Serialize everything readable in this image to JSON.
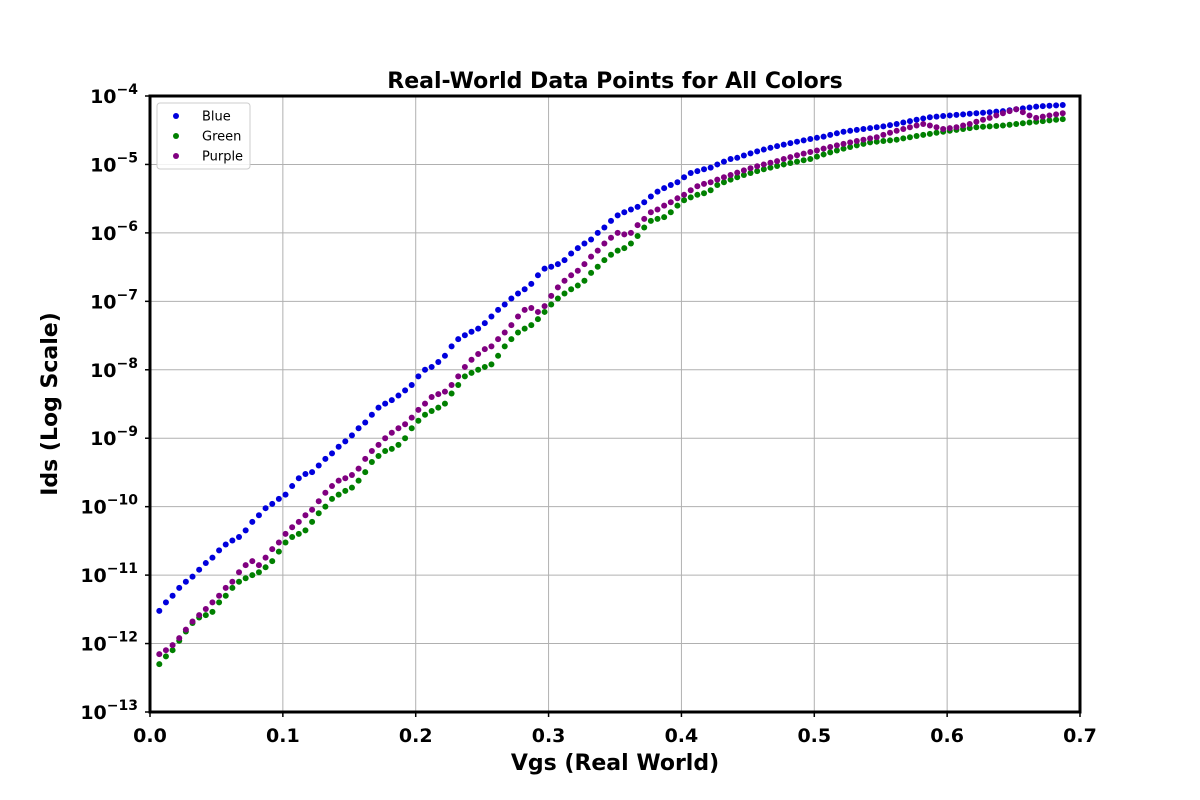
{
  "chart_data": {
    "type": "scatter",
    "title": "Real-World Data Points for All Colors",
    "xlabel": "Vgs (Real World)",
    "ylabel": "Ids (Log Scale)",
    "xlim": [
      0.0,
      0.7
    ],
    "ylim": [
      1e-13,
      0.0001
    ],
    "yscale": "log",
    "grid": true,
    "legend_position": "top-left",
    "x_ticks": [
      {
        "value": 0.0,
        "label": "0.0"
      },
      {
        "value": 0.1,
        "label": "0.1"
      },
      {
        "value": 0.2,
        "label": "0.2"
      },
      {
        "value": 0.3,
        "label": "0.3"
      },
      {
        "value": 0.4,
        "label": "0.4"
      },
      {
        "value": 0.5,
        "label": "0.5"
      },
      {
        "value": 0.6,
        "label": "0.6"
      },
      {
        "value": 0.7,
        "label": "0.7"
      }
    ],
    "y_ticks": [
      {
        "exp": -13,
        "base": "10",
        "sup": "−13"
      },
      {
        "exp": -12,
        "base": "10",
        "sup": "−12"
      },
      {
        "exp": -11,
        "base": "10",
        "sup": "−11"
      },
      {
        "exp": -10,
        "base": "10",
        "sup": "−10"
      },
      {
        "exp": -9,
        "base": "10",
        "sup": "−9"
      },
      {
        "exp": -8,
        "base": "10",
        "sup": "−8"
      },
      {
        "exp": -7,
        "base": "10",
        "sup": "−7"
      },
      {
        "exp": -6,
        "base": "10",
        "sup": "−6"
      },
      {
        "exp": -5,
        "base": "10",
        "sup": "−5"
      },
      {
        "exp": -4,
        "base": "10",
        "sup": "−4"
      }
    ],
    "series": [
      {
        "name": "Blue",
        "color": "#0000dd",
        "x": [
          0.007,
          0.012,
          0.017,
          0.022,
          0.027,
          0.032,
          0.037,
          0.042,
          0.047,
          0.052,
          0.057,
          0.062,
          0.067,
          0.072,
          0.077,
          0.082,
          0.087,
          0.092,
          0.097,
          0.102,
          0.107,
          0.112,
          0.117,
          0.122,
          0.127,
          0.132,
          0.137,
          0.142,
          0.147,
          0.152,
          0.157,
          0.162,
          0.167,
          0.172,
          0.177,
          0.182,
          0.187,
          0.192,
          0.197,
          0.202,
          0.207,
          0.212,
          0.217,
          0.222,
          0.227,
          0.232,
          0.237,
          0.242,
          0.247,
          0.252,
          0.257,
          0.262,
          0.267,
          0.272,
          0.277,
          0.282,
          0.287,
          0.292,
          0.297,
          0.302,
          0.307,
          0.312,
          0.317,
          0.322,
          0.327,
          0.332,
          0.337,
          0.342,
          0.347,
          0.352,
          0.357,
          0.362,
          0.367,
          0.372,
          0.377,
          0.382,
          0.387,
          0.392,
          0.397,
          0.402,
          0.407,
          0.412,
          0.417,
          0.422,
          0.427,
          0.432,
          0.437,
          0.442,
          0.447,
          0.452,
          0.457,
          0.462,
          0.467,
          0.472,
          0.477,
          0.482,
          0.487,
          0.492,
          0.497,
          0.502,
          0.507,
          0.512,
          0.517,
          0.522,
          0.527,
          0.532,
          0.537,
          0.542,
          0.547,
          0.552,
          0.557,
          0.562,
          0.567,
          0.572,
          0.577,
          0.582,
          0.587,
          0.592,
          0.597,
          0.602,
          0.607,
          0.612,
          0.617,
          0.622,
          0.627,
          0.632,
          0.637,
          0.642,
          0.647,
          0.652,
          0.657,
          0.662,
          0.667,
          0.672,
          0.677,
          0.682,
          0.687
        ],
        "y": [
          3e-12,
          4e-12,
          5e-12,
          6.5e-12,
          8e-12,
          9.5e-12,
          1.2e-11,
          1.5e-11,
          1.8e-11,
          2.3e-11,
          2.8e-11,
          3.2e-11,
          3.6e-11,
          4.5e-11,
          6e-11,
          7.5e-11,
          9.5e-11,
          1.1e-10,
          1.3e-10,
          1.5e-10,
          2e-10,
          2.6e-10,
          3e-10,
          3.2e-10,
          4e-10,
          5e-10,
          6e-10,
          7.5e-10,
          9e-10,
          1.1e-09,
          1.4e-09,
          1.7e-09,
          2.2e-09,
          2.8e-09,
          3.2e-09,
          3.6e-09,
          4.2e-09,
          5e-09,
          6e-09,
          8e-09,
          1e-08,
          1.1e-08,
          1.3e-08,
          1.6e-08,
          2.2e-08,
          2.8e-08,
          3.2e-08,
          3.6e-08,
          4e-08,
          4.8e-08,
          6e-08,
          7.5e-08,
          9e-08,
          1.1e-07,
          1.3e-07,
          1.5e-07,
          1.8e-07,
          2.4e-07,
          3e-07,
          3.2e-07,
          3.5e-07,
          4e-07,
          5e-07,
          6e-07,
          7e-07,
          8e-07,
          1e-06,
          1.2e-06,
          1.5e-06,
          1.8e-06,
          2e-06,
          2.2e-06,
          2.4e-06,
          2.8e-06,
          3.4e-06,
          4e-06,
          4.5e-06,
          5e-06,
          5.5e-06,
          6.5e-06,
          7.5e-06,
          8e-06,
          8.5e-06,
          9e-06,
          1e-05,
          1.1e-05,
          1.2e-05,
          1.25e-05,
          1.35e-05,
          1.45e-05,
          1.55e-05,
          1.65e-05,
          1.75e-05,
          1.85e-05,
          1.95e-05,
          2.05e-05,
          2.15e-05,
          2.25e-05,
          2.35e-05,
          2.45e-05,
          2.55e-05,
          2.7e-05,
          2.85e-05,
          3e-05,
          3.1e-05,
          3.2e-05,
          3.3e-05,
          3.4e-05,
          3.5e-05,
          3.6e-05,
          3.75e-05,
          3.9e-05,
          4.1e-05,
          4.3e-05,
          4.5e-05,
          4.7e-05,
          4.9e-05,
          5e-05,
          5.1e-05,
          5.2e-05,
          5.3e-05,
          5.4e-05,
          5.5e-05,
          5.6e-05,
          5.7e-05,
          5.8e-05,
          5.9e-05,
          6e-05,
          6.2e-05,
          6.4e-05,
          6.6e-05,
          6.8e-05,
          7e-05,
          7.1e-05,
          7.2e-05,
          7.3e-05,
          7.4e-05
        ]
      },
      {
        "name": "Green",
        "color": "#008000",
        "x": [
          0.007,
          0.012,
          0.017,
          0.022,
          0.027,
          0.032,
          0.037,
          0.042,
          0.047,
          0.052,
          0.057,
          0.062,
          0.067,
          0.072,
          0.077,
          0.082,
          0.087,
          0.092,
          0.097,
          0.102,
          0.107,
          0.112,
          0.117,
          0.122,
          0.127,
          0.132,
          0.137,
          0.142,
          0.147,
          0.152,
          0.157,
          0.162,
          0.167,
          0.172,
          0.177,
          0.182,
          0.187,
          0.192,
          0.197,
          0.202,
          0.207,
          0.212,
          0.217,
          0.222,
          0.227,
          0.232,
          0.237,
          0.242,
          0.247,
          0.252,
          0.257,
          0.262,
          0.267,
          0.272,
          0.277,
          0.282,
          0.287,
          0.292,
          0.297,
          0.302,
          0.307,
          0.312,
          0.317,
          0.322,
          0.327,
          0.332,
          0.337,
          0.342,
          0.347,
          0.352,
          0.357,
          0.362,
          0.367,
          0.372,
          0.377,
          0.382,
          0.387,
          0.392,
          0.397,
          0.402,
          0.407,
          0.412,
          0.417,
          0.422,
          0.427,
          0.432,
          0.437,
          0.442,
          0.447,
          0.452,
          0.457,
          0.462,
          0.467,
          0.472,
          0.477,
          0.482,
          0.487,
          0.492,
          0.497,
          0.502,
          0.507,
          0.512,
          0.517,
          0.522,
          0.527,
          0.532,
          0.537,
          0.542,
          0.547,
          0.552,
          0.557,
          0.562,
          0.567,
          0.572,
          0.577,
          0.582,
          0.587,
          0.592,
          0.597,
          0.602,
          0.607,
          0.612,
          0.617,
          0.622,
          0.627,
          0.632,
          0.637,
          0.642,
          0.647,
          0.652,
          0.657,
          0.662,
          0.667,
          0.672,
          0.677,
          0.682,
          0.687
        ],
        "y": [
          5e-13,
          6.5e-13,
          8e-13,
          1.1e-12,
          1.5e-12,
          2e-12,
          2.4e-12,
          2.6e-12,
          2.9e-12,
          4e-12,
          5e-12,
          6.5e-12,
          8e-12,
          9e-12,
          1e-11,
          1.1e-11,
          1.3e-11,
          1.6e-11,
          2.2e-11,
          3e-11,
          3.6e-11,
          4e-11,
          4.5e-11,
          6e-11,
          8e-11,
          1e-10,
          1.3e-10,
          1.5e-10,
          1.7e-10,
          1.9e-10,
          2.4e-10,
          3.2e-10,
          4.5e-10,
          5.5e-10,
          6.5e-10,
          7e-10,
          8e-10,
          1e-09,
          1.4e-09,
          1.8e-09,
          2.2e-09,
          2.5e-09,
          2.8e-09,
          3.2e-09,
          4.5e-09,
          6e-09,
          8e-09,
          9e-09,
          1e-08,
          1.1e-08,
          1.2e-08,
          1.6e-08,
          2.2e-08,
          2.8e-08,
          3.5e-08,
          4e-08,
          4.5e-08,
          5.5e-08,
          7e-08,
          9e-08,
          1.1e-07,
          1.3e-07,
          1.5e-07,
          1.7e-07,
          2e-07,
          2.6e-07,
          3.2e-07,
          4e-07,
          4.8e-07,
          5.5e-07,
          6e-07,
          7e-07,
          9e-07,
          1.2e-06,
          1.5e-06,
          1.6e-06,
          1.7e-06,
          2e-06,
          2.5e-06,
          3e-06,
          3.3e-06,
          3.6e-06,
          3.8e-06,
          4.2e-06,
          5e-06,
          5.5e-06,
          6e-06,
          6.5e-06,
          7e-06,
          7.5e-06,
          8e-06,
          8.5e-06,
          9e-06,
          9.5e-06,
          1e-05,
          1.05e-05,
          1.1e-05,
          1.15e-05,
          1.2e-05,
          1.3e-05,
          1.4e-05,
          1.5e-05,
          1.6e-05,
          1.7e-05,
          1.8e-05,
          1.9e-05,
          2e-05,
          2.1e-05,
          2.15e-05,
          2.2e-05,
          2.25e-05,
          2.3e-05,
          2.4e-05,
          2.5e-05,
          2.6e-05,
          2.7e-05,
          2.8e-05,
          2.9e-05,
          3e-05,
          3.1e-05,
          3.2e-05,
          3.3e-05,
          3.4e-05,
          3.5e-05,
          3.55e-05,
          3.6e-05,
          3.65e-05,
          3.7e-05,
          3.8e-05,
          3.9e-05,
          4e-05,
          4.1e-05,
          4.2e-05,
          4.3e-05,
          4.4e-05,
          4.5e-05,
          4.6e-05
        ]
      },
      {
        "name": "Purple",
        "color": "#800080",
        "x": [
          0.007,
          0.012,
          0.017,
          0.022,
          0.027,
          0.032,
          0.037,
          0.042,
          0.047,
          0.052,
          0.057,
          0.062,
          0.067,
          0.072,
          0.077,
          0.082,
          0.087,
          0.092,
          0.097,
          0.102,
          0.107,
          0.112,
          0.117,
          0.122,
          0.127,
          0.132,
          0.137,
          0.142,
          0.147,
          0.152,
          0.157,
          0.162,
          0.167,
          0.172,
          0.177,
          0.182,
          0.187,
          0.192,
          0.197,
          0.202,
          0.207,
          0.212,
          0.217,
          0.222,
          0.227,
          0.232,
          0.237,
          0.242,
          0.247,
          0.252,
          0.257,
          0.262,
          0.267,
          0.272,
          0.277,
          0.282,
          0.287,
          0.292,
          0.297,
          0.302,
          0.307,
          0.312,
          0.317,
          0.322,
          0.327,
          0.332,
          0.337,
          0.342,
          0.347,
          0.352,
          0.357,
          0.362,
          0.367,
          0.372,
          0.377,
          0.382,
          0.387,
          0.392,
          0.397,
          0.402,
          0.407,
          0.412,
          0.417,
          0.422,
          0.427,
          0.432,
          0.437,
          0.442,
          0.447,
          0.452,
          0.457,
          0.462,
          0.467,
          0.472,
          0.477,
          0.482,
          0.487,
          0.492,
          0.497,
          0.502,
          0.507,
          0.512,
          0.517,
          0.522,
          0.527,
          0.532,
          0.537,
          0.542,
          0.547,
          0.552,
          0.557,
          0.562,
          0.567,
          0.572,
          0.577,
          0.582,
          0.587,
          0.592,
          0.597,
          0.602,
          0.607,
          0.612,
          0.617,
          0.622,
          0.627,
          0.632,
          0.637,
          0.642,
          0.647,
          0.652,
          0.657,
          0.662,
          0.667,
          0.672,
          0.677,
          0.682,
          0.687
        ],
        "y": [
          7e-13,
          8e-13,
          9.5e-13,
          1.2e-12,
          1.6e-12,
          2.1e-12,
          2.6e-12,
          3.2e-12,
          4e-12,
          5e-12,
          6.5e-12,
          8e-12,
          1.1e-11,
          1.4e-11,
          1.6e-11,
          1.4e-11,
          1.8e-11,
          2.4e-11,
          3e-11,
          4e-11,
          5e-11,
          6e-11,
          7.5e-11,
          9e-11,
          1.2e-10,
          1.6e-10,
          2e-10,
          2.4e-10,
          2.6e-10,
          2.9e-10,
          3.6e-10,
          5e-10,
          6.5e-10,
          8e-10,
          1e-09,
          1.2e-09,
          1.4e-09,
          1.6e-09,
          2e-09,
          2.6e-09,
          3.2e-09,
          4e-09,
          4.4e-09,
          4.8e-09,
          6e-09,
          8e-09,
          1.1e-08,
          1.4e-08,
          1.7e-08,
          2e-08,
          2.2e-08,
          2.8e-08,
          3.5e-08,
          4.5e-08,
          6e-08,
          7.5e-08,
          8e-08,
          7e-08,
          8.5e-08,
          1.2e-07,
          1.6e-07,
          2e-07,
          2.4e-07,
          2.8e-07,
          3.5e-07,
          4.5e-07,
          5.5e-07,
          7e-07,
          8.5e-07,
          1e-06,
          9.5e-07,
          1e-06,
          1.3e-06,
          1.6e-06,
          2e-06,
          2.2e-06,
          2.5e-06,
          2.8e-06,
          3.2e-06,
          3.6e-06,
          4.2e-06,
          4.8e-06,
          5.2e-06,
          5.5e-06,
          6e-06,
          6.5e-06,
          7e-06,
          7.6e-06,
          8.2e-06,
          8.8e-06,
          9.4e-06,
          1e-05,
          1.06e-05,
          1.12e-05,
          1.2e-05,
          1.28e-05,
          1.36e-05,
          1.44e-05,
          1.52e-05,
          1.6e-05,
          1.7e-05,
          1.8e-05,
          1.9e-05,
          2e-05,
          2.1e-05,
          2.2e-05,
          2.3e-05,
          2.4e-05,
          2.5e-05,
          2.7e-05,
          2.9e-05,
          3.1e-05,
          3.3e-05,
          3.5e-05,
          3.7e-05,
          3.9e-05,
          3.7e-05,
          3.5e-05,
          3.3e-05,
          3.4e-05,
          3.5e-05,
          3.7e-05,
          3.9e-05,
          4.2e-05,
          4.5e-05,
          4.8e-05,
          5.2e-05,
          5.6e-05,
          6e-05,
          6.4e-05,
          5.8e-05,
          5.2e-05,
          4.8e-05,
          5e-05,
          5.2e-05,
          5.4e-05,
          5.6e-05
        ]
      }
    ]
  }
}
